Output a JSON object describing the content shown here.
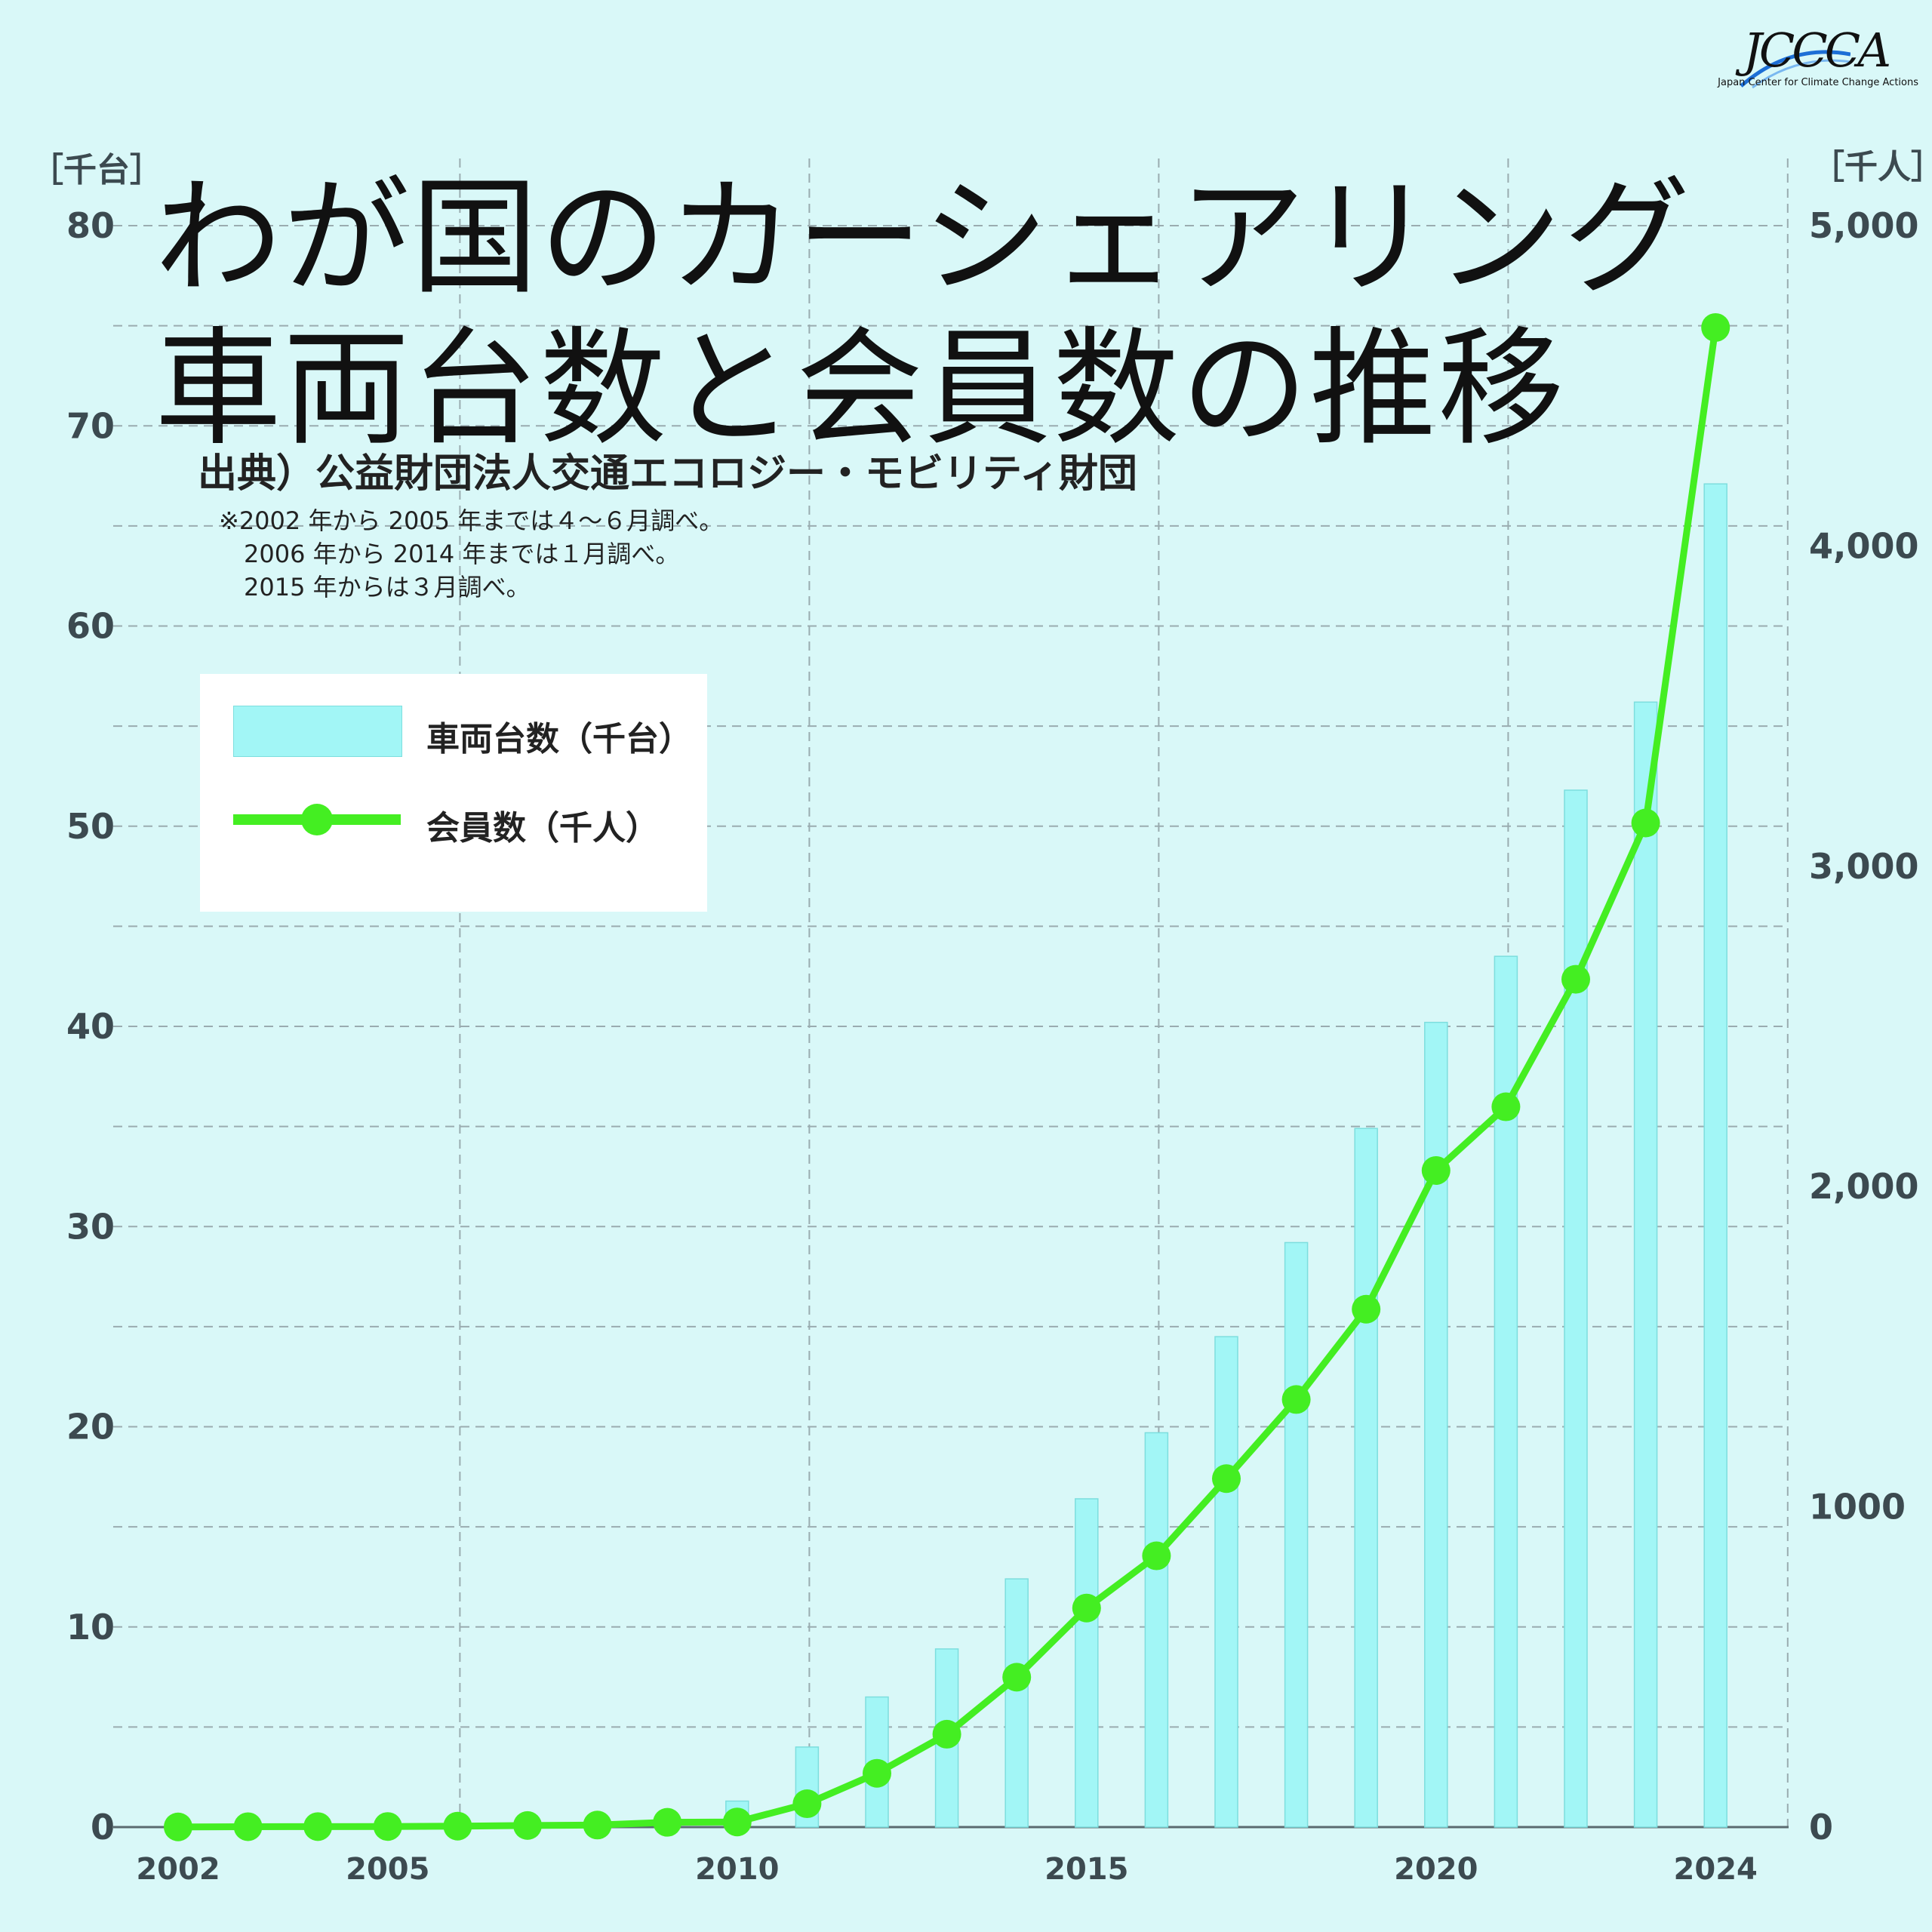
{
  "title_line1": "わが国のカーシェアリング",
  "title_line2": "車両台数と会員数の推移",
  "source": "出典）公益財団法人交通エコロジー・モビリティ財団",
  "notes": [
    "※2002 年から 2005 年までは４～６月調べ。",
    "2006 年から 2014 年までは１月調べ。",
    "2015 年からは３月調べ。"
  ],
  "logo": {
    "text": "JCCCA",
    "subtitle": "Japan Center for Climate Change Actions"
  },
  "legend": {
    "bar_label": "車両台数（千台）",
    "line_label": "会員数（千人）"
  },
  "colors": {
    "background": "#d9f8f8",
    "bar": "#a2f6f6",
    "bar_edge": "#7ddede",
    "line": "#44ee22",
    "grid": "#9aacb0",
    "axis_text": "#3c4a50"
  },
  "chart_data": {
    "type": "bar+line",
    "years": [
      2002,
      2003,
      2004,
      2005,
      2006,
      2007,
      2008,
      2009,
      2010,
      2011,
      2012,
      2013,
      2014,
      2015,
      2016,
      2017,
      2018,
      2019,
      2020,
      2021,
      2022,
      2023,
      2024
    ],
    "x_tick_labels": [
      "2002",
      "2005",
      "2010",
      "2015",
      "2020",
      "2024"
    ],
    "left_axis": {
      "label": "［千台］",
      "range": [
        0,
        80
      ],
      "ticks": [
        "0",
        "10",
        "20",
        "30",
        "40",
        "50",
        "60",
        "70",
        "80"
      ]
    },
    "right_axis": {
      "label": "［千人］",
      "range": [
        0,
        5000
      ],
      "ticks": [
        "0",
        "1000",
        "2,000",
        "3,000",
        "4,000",
        "5,000"
      ]
    },
    "series": [
      {
        "name": "車両台数（千台）",
        "type": "bar",
        "axis": "left",
        "values": [
          0.02,
          0.04,
          0.06,
          0.1,
          0.1,
          0.3,
          0.4,
          0.6,
          1.3,
          4.0,
          6.5,
          8.9,
          12.4,
          16.4,
          19.7,
          24.5,
          29.2,
          34.9,
          40.2,
          43.5,
          51.8,
          56.2,
          67.1
        ]
      },
      {
        "name": "会員数（千人）",
        "type": "line",
        "axis": "right",
        "values": [
          0.6,
          1.2,
          1.5,
          1.9,
          3,
          5,
          6.4,
          15,
          16,
          73,
          168,
          290,
          468,
          684,
          847,
          1088,
          1335,
          1617,
          2050,
          2249,
          2647,
          3135,
          4682
        ]
      }
    ]
  }
}
